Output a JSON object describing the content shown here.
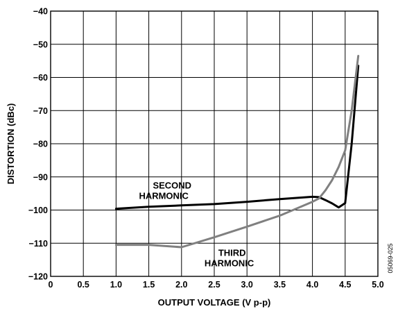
{
  "chart_data": {
    "type": "line",
    "title": "",
    "xlabel": "OUTPUT VOLTAGE (V p-p)",
    "ylabel": "DISTORTION (dBc)",
    "xlim": [
      0,
      5.0
    ],
    "ylim": [
      -120,
      -40
    ],
    "x_ticks": [
      "0",
      "0.5",
      "1.0",
      "1.5",
      "2.0",
      "2.5",
      "3.0",
      "3.5",
      "4.0",
      "4.5",
      "5.0"
    ],
    "y_ticks": [
      "−40",
      "−50",
      "−60",
      "−70",
      "−80",
      "−90",
      "−100",
      "−110",
      "−120"
    ],
    "grid": true,
    "series": [
      {
        "name": "SECOND HARMONIC",
        "color": "#000000",
        "x": [
          1.0,
          1.5,
          2.0,
          2.5,
          3.0,
          3.5,
          4.0,
          4.1,
          4.2,
          4.3,
          4.4,
          4.5,
          4.6,
          4.7
        ],
        "y": [
          -99.6,
          -99.0,
          -98.6,
          -98.2,
          -97.5,
          -96.7,
          -96.0,
          -96.1,
          -97.0,
          -98.0,
          -99.2,
          -97.9,
          -80.0,
          -56.5
        ]
      },
      {
        "name": "THIRD HARMONIC",
        "color": "#808080",
        "x": [
          1.0,
          1.5,
          2.0,
          2.5,
          3.0,
          3.5,
          4.0,
          4.1,
          4.2,
          4.3,
          4.4,
          4.5,
          4.6,
          4.7
        ],
        "y": [
          -110.5,
          -110.5,
          -111.2,
          -108.2,
          -105.0,
          -101.7,
          -97.5,
          -96.5,
          -94.0,
          -91.0,
          -87.0,
          -82.0,
          -70.0,
          -53.5
        ]
      }
    ],
    "annotations": [
      {
        "lines": [
          "SECOND",
          "HARMONIC"
        ],
        "x": 1.35,
        "y": -93.5
      },
      {
        "lines": [
          "THIRD",
          "HARMONIC"
        ],
        "x": 2.35,
        "y": -113.8
      }
    ],
    "figure_id": "05069-025"
  }
}
